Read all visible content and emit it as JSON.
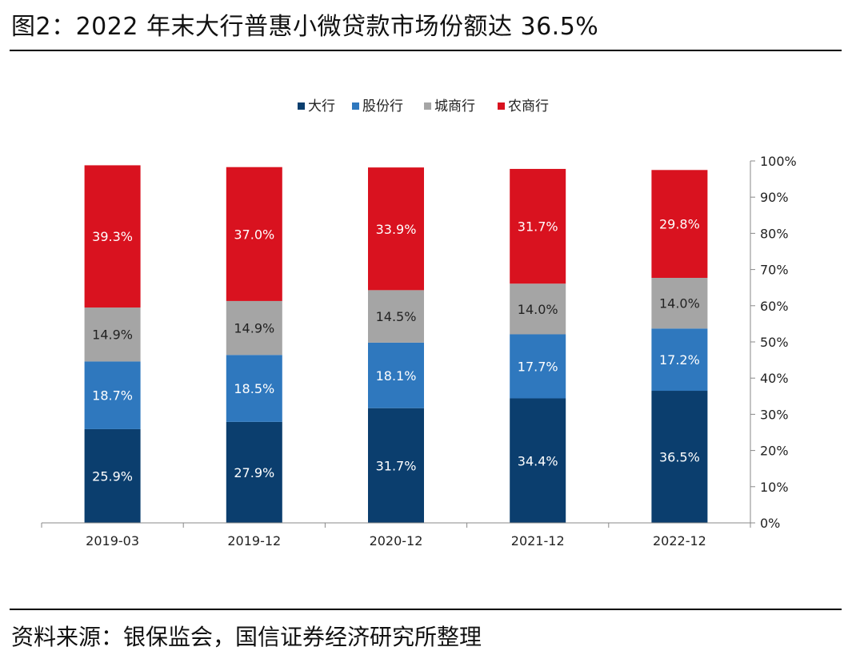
{
  "figure": {
    "title": "图2：2022 年末大行普惠小微贷款市场份额达 36.5%",
    "source": "资料来源：银保监会，国信证券经济研究所整理"
  },
  "chart_data": {
    "type": "bar",
    "stacked": true,
    "categories": [
      "2019-03",
      "2019-12",
      "2020-12",
      "2021-12",
      "2022-12"
    ],
    "series": [
      {
        "name": "大行",
        "color": "#0b3e6e",
        "values": [
          25.9,
          27.9,
          31.7,
          34.4,
          36.5
        ]
      },
      {
        "name": "股份行",
        "color": "#2f78be",
        "values": [
          18.7,
          18.5,
          18.1,
          17.7,
          17.2
        ]
      },
      {
        "name": "城商行",
        "color": "#a5a5a5",
        "values": [
          14.9,
          14.9,
          14.5,
          14.0,
          14.0
        ]
      },
      {
        "name": "农商行",
        "color": "#d9121f",
        "values": [
          39.3,
          37.0,
          33.9,
          31.7,
          29.8
        ]
      }
    ],
    "ylim": [
      0,
      100
    ],
    "y_ticks": [
      "0%",
      "10%",
      "20%",
      "30%",
      "40%",
      "50%",
      "60%",
      "70%",
      "80%",
      "90%",
      "100%"
    ],
    "y_axis_position": "right",
    "data_label_suffix": "%",
    "legend_position": "top-center",
    "grid": false
  }
}
